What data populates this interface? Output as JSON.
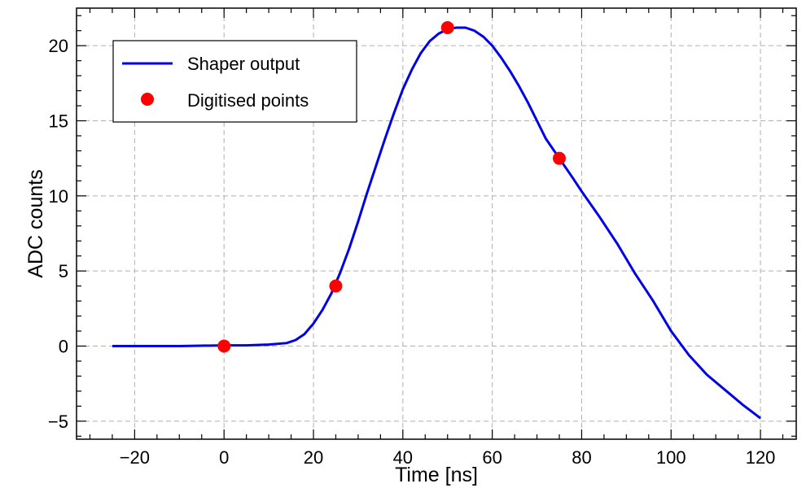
{
  "chart_data": {
    "type": "line",
    "title": "",
    "xlabel": "Time [ns]",
    "ylabel": "ADC counts",
    "xlim": [
      -33,
      128
    ],
    "ylim": [
      -6.2,
      22.5
    ],
    "x_ticks": [
      -20,
      0,
      20,
      40,
      60,
      80,
      100,
      120
    ],
    "y_ticks": [
      -5,
      0,
      5,
      10,
      15,
      20
    ],
    "x_tick_labels": [
      "−20",
      "0",
      "20",
      "40",
      "60",
      "80",
      "100",
      "120"
    ],
    "y_tick_labels": [
      "−5",
      "0",
      "5",
      "10",
      "15",
      "20"
    ],
    "grid": true,
    "legend_position": "top-left",
    "series": [
      {
        "name": "Shaper output",
        "kind": "line",
        "color": "#0000e6",
        "x": [
          -25,
          -10,
          0,
          5,
          10,
          14,
          16,
          18,
          20,
          22,
          24,
          26,
          28,
          30,
          32,
          34,
          36,
          38,
          40,
          42,
          44,
          46,
          48,
          50,
          52,
          54,
          56,
          58,
          60,
          62,
          64,
          66,
          68,
          70,
          72,
          75,
          78,
          80,
          84,
          88,
          92,
          96,
          100,
          104,
          108,
          112,
          116,
          120
        ],
        "y": [
          0.0,
          0.0,
          0.05,
          0.05,
          0.1,
          0.2,
          0.4,
          0.8,
          1.5,
          2.4,
          3.5,
          4.9,
          6.5,
          8.3,
          10.2,
          12.0,
          13.8,
          15.5,
          17.1,
          18.4,
          19.5,
          20.3,
          20.8,
          21.1,
          21.2,
          21.2,
          21.0,
          20.6,
          20.0,
          19.2,
          18.3,
          17.3,
          16.2,
          15.0,
          13.8,
          12.5,
          11.2,
          10.3,
          8.6,
          6.8,
          4.8,
          3.0,
          1.0,
          -0.6,
          -1.9,
          -2.9,
          -3.9,
          -4.8
        ]
      },
      {
        "name": "Digitised points",
        "kind": "scatter",
        "color": "#ff0000",
        "x": [
          0,
          25,
          50,
          75
        ],
        "y": [
          0.0,
          4.0,
          21.2,
          12.5
        ]
      }
    ]
  }
}
